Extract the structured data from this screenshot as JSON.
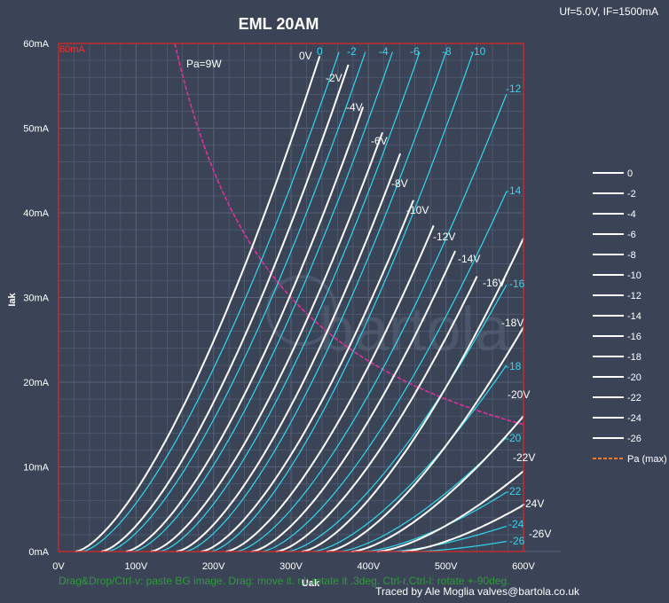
{
  "chart_data": {
    "type": "line",
    "title": "EML  20AM",
    "conditions": "Uf=5.0V, IF=1500mA",
    "xlabel": "Uak",
    "ylabel": "Iak",
    "xlim": [
      0,
      600
    ],
    "ylim": [
      0,
      60
    ],
    "grid": true,
    "x_ticks": [
      "0V",
      "100V",
      "200V",
      "300V",
      "400V",
      "500V",
      "600V"
    ],
    "y_ticks": [
      "0mA",
      "10mA",
      "20mA",
      "30mA",
      "40mA",
      "50mA",
      "60mA"
    ],
    "current_limit_label": "60mA",
    "power_limit": {
      "label": "Pa=9W",
      "watts": 9
    },
    "white_series": [
      {
        "name": "0",
        "label": "0V",
        "v0": 22,
        "x_end": 337,
        "y_end": 58.5
      },
      {
        "name": "-2",
        "label": "-2V",
        "v0": 55,
        "x_end": 374,
        "y_end": 57.5
      },
      {
        "name": "-4",
        "label": "-4V",
        "v0": 87,
        "x_end": 393,
        "y_end": 52.5
      },
      {
        "name": "-6",
        "label": "-6V",
        "v0": 119,
        "x_end": 418,
        "y_end": 49.5
      },
      {
        "name": "-8",
        "label": "-8V",
        "v0": 152,
        "x_end": 441,
        "y_end": 47.0
      },
      {
        "name": "-10",
        "label": "-10V",
        "v0": 184,
        "x_end": 458,
        "y_end": 41.5
      },
      {
        "name": "-12",
        "label": "-12V",
        "v0": 216,
        "x_end": 484,
        "y_end": 38.5
      },
      {
        "name": "-14",
        "label": "-14V",
        "v0": 249,
        "x_end": 512,
        "y_end": 35.5
      },
      {
        "name": "-16",
        "label": "-16V",
        "v0": 281,
        "x_end": 540,
        "y_end": 32.5
      },
      {
        "name": "-18",
        "label": "-18V",
        "v0": 314,
        "x_end": 600,
        "y_end": 37.0
      },
      {
        "name": "-20",
        "label": "-20V",
        "v0": 346,
        "x_end": 600,
        "y_end": 26.5
      },
      {
        "name": "-22",
        "label": "-22V",
        "v0": 378,
        "x_end": 600,
        "y_end": 16.0
      },
      {
        "name": "-24",
        "label": "-24V",
        "v0": 411,
        "x_end": 600,
        "y_end": 9.5
      },
      {
        "name": "-26",
        "label": "-26V",
        "v0": 443,
        "x_end": 600,
        "y_end": 5.5
      }
    ],
    "cyan_series": [
      {
        "label": "0",
        "v0": 30,
        "x_end": 362,
        "y_end": 59.0
      },
      {
        "label": "-2",
        "v0": 63,
        "x_end": 396,
        "y_end": 59.0
      },
      {
        "label": "-4",
        "v0": 96,
        "x_end": 431,
        "y_end": 59.0
      },
      {
        "label": "-6",
        "v0": 130,
        "x_end": 466,
        "y_end": 59.0
      },
      {
        "label": "-8",
        "v0": 163,
        "x_end": 500,
        "y_end": 59.0
      },
      {
        "label": "-10",
        "v0": 196,
        "x_end": 535,
        "y_end": 59.0
      },
      {
        "label": "-12",
        "v0": 229,
        "x_end": 578,
        "y_end": 54.0
      },
      {
        "label": "-14",
        "v0": 262,
        "x_end": 578,
        "y_end": 42.5
      },
      {
        "label": "-16",
        "v0": 295,
        "x_end": 578,
        "y_end": 31.5
      },
      {
        "label": "-18",
        "v0": 328,
        "x_end": 578,
        "y_end": 22.0
      },
      {
        "label": "-20",
        "v0": 361,
        "x_end": 578,
        "y_end": 13.5
      },
      {
        "label": "-22",
        "v0": 394,
        "x_end": 578,
        "y_end": 7.0
      },
      {
        "label": "-24",
        "v0": 427,
        "x_end": 578,
        "y_end": 3.0
      },
      {
        "label": "-26",
        "v0": 460,
        "x_end": 578,
        "y_end": 1.2
      }
    ],
    "legend": {
      "placement": "right",
      "entries": [
        "0",
        "-2",
        "-4",
        "-6",
        "-8",
        "-10",
        "-12",
        "-14",
        "-16",
        "-18",
        "-20",
        "-22",
        "-24",
        "-26"
      ],
      "pa_entry": "Pa (max)"
    }
  },
  "colors": {
    "background": "#3b4457",
    "grid": "#56627a",
    "frame": "#cc2a2a",
    "white_curve": "#ffffff",
    "cyan_curve": "#2fd9ee",
    "pa_curve": "#e0309a",
    "pa_legend": "#f07a2a",
    "hint": "#2f9a3a"
  },
  "watermark": "bartola",
  "footer": {
    "credit": "Traced by Ale Moglia valves@bartola.co.uk",
    "hint": "Drag&Drop/Ctrl-v: paste BG image. Drag: move it. r,l: rotate it .3deg. Ctrl-r,Ctrl-l: rotate +-90deg."
  }
}
